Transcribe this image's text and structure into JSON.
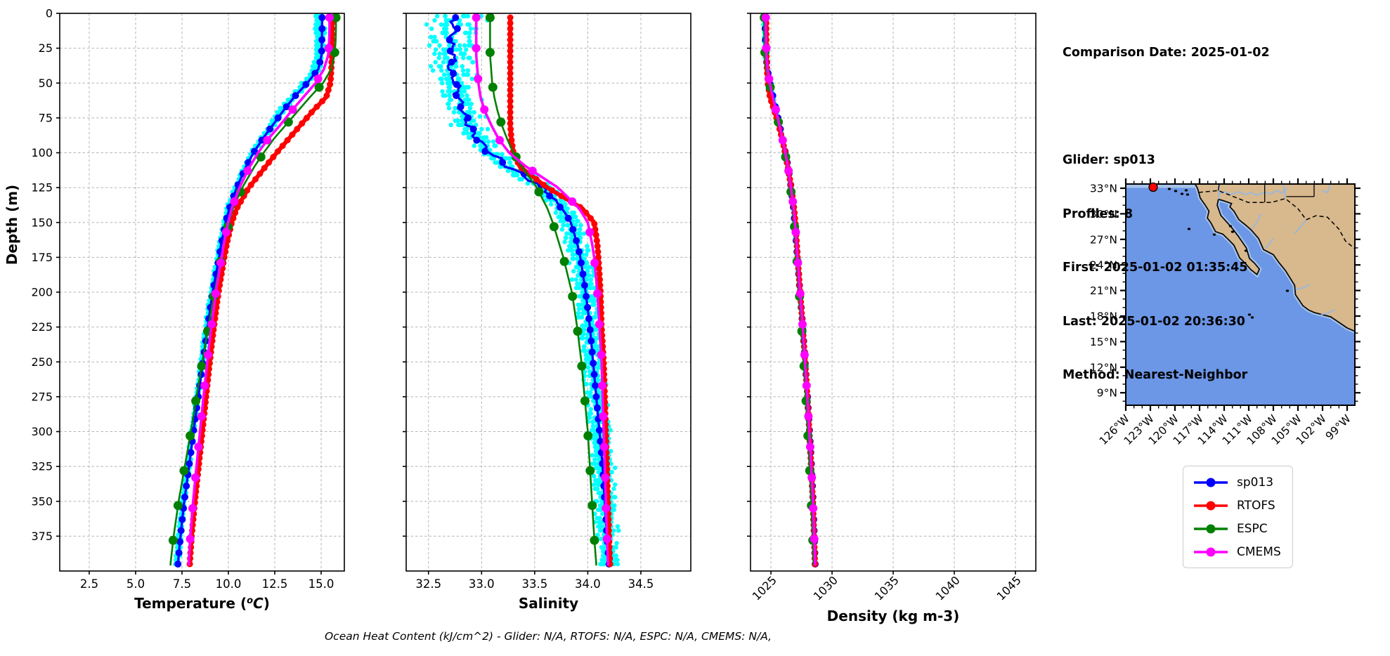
{
  "info_panel": {
    "comparison_date": "Comparison Date: 2025-01-02",
    "glider": "Glider: sp013",
    "profiles": "Profiles: 8",
    "first": "First: 2025-01-02 01:35:45",
    "last": "Last: 2025-01-02 20:36:30",
    "method": "Method: Nearest-Neighbor"
  },
  "caption": "Ocean Heat Content (kJ/cm^2) - Glider: N/A,  RTOFS: N/A,  ESPC: N/A,  CMEMS: N/A,",
  "map": {
    "lat_labels": [
      "33°N",
      "30°N",
      "27°N",
      "24°N",
      "21°N",
      "18°N",
      "15°N",
      "12°N",
      "9°N"
    ],
    "lon_labels": [
      "126°W",
      "123°W",
      "120°W",
      "117°W",
      "114°W",
      "111°W",
      "108°W",
      "105°W",
      "102°W",
      "99°W"
    ],
    "ocean_color": "#6c96e6",
    "shallow_color": "#a6c3e8",
    "land_color": "#d8b88d",
    "river_color": "#90b8e8",
    "coast_color": "#0a0a0a",
    "glider_marker_color": "#ff0000"
  },
  "chart_data": {
    "type": "line",
    "title": "",
    "ylabel": "Depth (m)",
    "ylim": [
      0,
      400
    ],
    "yticks": [
      0,
      25,
      50,
      75,
      100,
      125,
      150,
      175,
      200,
      225,
      250,
      275,
      300,
      325,
      350,
      375
    ],
    "ytick_labels": [
      "0",
      "25",
      "50",
      "75",
      "100",
      "125",
      "150",
      "175",
      "200",
      "225",
      "250",
      "275",
      "300",
      "325",
      "350",
      "375"
    ],
    "grid": true,
    "legend_position": "lower right (outside, under map)",
    "depths": [
      0,
      10,
      20,
      30,
      40,
      50,
      60,
      70,
      80,
      90,
      100,
      110,
      125,
      140,
      150,
      165,
      175,
      200,
      225,
      250,
      275,
      300,
      325,
      350,
      375,
      395
    ],
    "panels": [
      {
        "key": "temperature",
        "xlabel": "Temperature (°C)",
        "xlabel_parts": [
          "Temperature (",
          "o",
          "C",
          ")"
        ],
        "xlim": [
          0.91,
          16.25
        ],
        "xticks": [
          2.5,
          5.0,
          7.5,
          10.0,
          12.5,
          15.0
        ],
        "xtick_labels": [
          "2.5",
          "5.0",
          "7.5",
          "10.0",
          "12.5",
          "15.0"
        ],
        "rotate_xticks": false
      },
      {
        "key": "salinity",
        "xlabel": "Salinity",
        "xlim": [
          32.29,
          34.97
        ],
        "xticks": [
          32.5,
          33.0,
          33.5,
          34.0,
          34.5
        ],
        "xtick_labels": [
          "32.5",
          "33.0",
          "33.5",
          "34.0",
          "34.5"
        ],
        "rotate_xticks": false
      },
      {
        "key": "density",
        "xlabel": "Density (kg m-3)",
        "xlim": [
          1023.33,
          1046.67
        ],
        "xticks": [
          1025,
          1030,
          1035,
          1040,
          1045
        ],
        "xtick_labels": [
          "1025",
          "1030",
          "1035",
          "1040",
          "1045"
        ],
        "rotate_xticks": true
      }
    ],
    "series": [
      {
        "name": "sp013",
        "color": "#0000ff",
        "line_width": 3.2,
        "marker_every_m": 8,
        "marker_radius": 5,
        "temperature": [
          15.05,
          15.05,
          15.04,
          15.02,
          14.85,
          14.25,
          13.55,
          12.95,
          12.4,
          11.85,
          11.35,
          10.95,
          10.45,
          10.05,
          9.85,
          9.62,
          9.5,
          9.15,
          8.88,
          8.62,
          8.38,
          8.12,
          7.88,
          7.62,
          7.42,
          7.28
        ],
        "salinity": [
          32.72,
          32.75,
          32.7,
          32.74,
          32.7,
          32.76,
          32.78,
          32.82,
          32.88,
          32.96,
          33.08,
          33.25,
          33.58,
          33.76,
          33.84,
          33.9,
          33.93,
          33.98,
          34.02,
          34.05,
          34.08,
          34.11,
          34.14,
          34.16,
          34.18,
          34.2
        ],
        "density": [
          1024.5,
          1024.52,
          1024.55,
          1024.6,
          1024.7,
          1024.92,
          1025.18,
          1025.45,
          1025.7,
          1025.95,
          1026.18,
          1026.4,
          1026.65,
          1026.85,
          1026.95,
          1027.08,
          1027.16,
          1027.38,
          1027.6,
          1027.8,
          1027.99,
          1028.16,
          1028.32,
          1028.45,
          1028.55,
          1028.62
        ]
      },
      {
        "name": "RTOFS",
        "color": "#ff0000",
        "line_width": 6,
        "marker_every_m": 4,
        "marker_radius": 4.5,
        "temperature": [
          15.6,
          15.6,
          15.6,
          15.58,
          15.55,
          15.5,
          15.28,
          14.55,
          13.9,
          13.25,
          12.6,
          12.0,
          11.1,
          10.45,
          10.18,
          9.92,
          9.78,
          9.47,
          9.22,
          9.0,
          8.8,
          8.6,
          8.4,
          8.2,
          8.02,
          7.92
        ],
        "salinity": [
          33.27,
          33.27,
          33.27,
          33.27,
          33.27,
          33.27,
          33.27,
          33.27,
          33.27,
          33.28,
          33.3,
          33.36,
          33.62,
          33.95,
          34.06,
          34.09,
          34.1,
          34.12,
          34.13,
          34.15,
          34.16,
          34.17,
          34.18,
          34.19,
          34.2,
          34.21
        ],
        "density": [
          1024.62,
          1024.62,
          1024.63,
          1024.64,
          1024.67,
          1024.74,
          1024.92,
          1025.28,
          1025.62,
          1025.92,
          1026.17,
          1026.38,
          1026.66,
          1026.9,
          1027.0,
          1027.11,
          1027.18,
          1027.39,
          1027.6,
          1027.8,
          1027.98,
          1028.14,
          1028.29,
          1028.43,
          1028.53,
          1028.6
        ]
      },
      {
        "name": "ESPC",
        "color": "#008000",
        "line_width": 2.6,
        "marker_every_m": 25,
        "marker_radius": 6.5,
        "temperature": [
          15.8,
          15.8,
          15.78,
          15.72,
          15.55,
          15.1,
          14.4,
          13.75,
          13.1,
          12.45,
          11.9,
          11.4,
          10.75,
          10.25,
          10.02,
          9.78,
          9.62,
          9.25,
          8.92,
          8.6,
          8.28,
          7.98,
          7.65,
          7.32,
          7.05,
          6.88
        ],
        "salinity": [
          33.08,
          33.08,
          33.08,
          33.08,
          33.09,
          33.1,
          33.12,
          33.15,
          33.19,
          33.24,
          33.3,
          33.38,
          33.52,
          33.62,
          33.67,
          33.73,
          33.77,
          33.85,
          33.9,
          33.94,
          33.97,
          34.0,
          34.02,
          34.04,
          34.06,
          34.08
        ],
        "density": [
          1024.45,
          1024.45,
          1024.47,
          1024.52,
          1024.63,
          1024.87,
          1025.12,
          1025.4,
          1025.66,
          1025.9,
          1026.14,
          1026.35,
          1026.6,
          1026.8,
          1026.9,
          1027.03,
          1027.11,
          1027.32,
          1027.51,
          1027.69,
          1027.86,
          1028.01,
          1028.16,
          1028.3,
          1028.42,
          1028.5
        ]
      },
      {
        "name": "CMEMS",
        "color": "#ff00ff",
        "line_width": 3.6,
        "marker_every_m": 22,
        "marker_radius": 6,
        "temperature": [
          15.45,
          15.45,
          15.43,
          15.38,
          15.15,
          14.7,
          14.05,
          13.4,
          12.8,
          12.15,
          11.6,
          11.15,
          10.6,
          10.18,
          9.98,
          9.76,
          9.64,
          9.32,
          9.08,
          8.86,
          8.66,
          8.47,
          8.28,
          8.1,
          7.95,
          7.86
        ],
        "salinity": [
          32.95,
          32.95,
          32.95,
          32.95,
          32.96,
          32.97,
          32.99,
          33.03,
          33.09,
          33.16,
          33.26,
          33.42,
          33.72,
          33.92,
          34.0,
          34.04,
          34.06,
          34.09,
          34.11,
          34.13,
          34.14,
          34.15,
          34.16,
          34.17,
          34.18,
          34.19
        ],
        "density": [
          1024.58,
          1024.58,
          1024.6,
          1024.63,
          1024.72,
          1024.9,
          1025.15,
          1025.43,
          1025.69,
          1025.94,
          1026.18,
          1026.39,
          1026.64,
          1026.87,
          1026.97,
          1027.1,
          1027.17,
          1027.39,
          1027.6,
          1027.79,
          1027.98,
          1028.14,
          1028.3,
          1028.44,
          1028.54,
          1028.61
        ]
      }
    ],
    "glider_scatter": {
      "name": "raw glider profiles",
      "color": "#00ffff",
      "profiles": 8,
      "dot_radius": 3.2,
      "step_m": 3,
      "offsets": {
        "temperature": [
          -0.34,
          -0.26,
          -0.19,
          -0.12,
          -0.06,
          0.02,
          -0.3,
          -0.15
        ],
        "salinity": [
          -0.18,
          -0.13,
          -0.08,
          -0.03,
          0.02,
          0.08,
          0.14,
          0.2
        ],
        "density": [
          -0.1,
          -0.07,
          -0.04,
          -0.01,
          0.02,
          -0.08,
          -0.05,
          -0.03
        ]
      },
      "noise": {
        "temperature": 0.06,
        "salinity": 0.045,
        "density": 0.025
      },
      "surface_wiggle": {
        "temperature": 0.1,
        "salinity": 0.07,
        "density": 0.03
      }
    }
  }
}
